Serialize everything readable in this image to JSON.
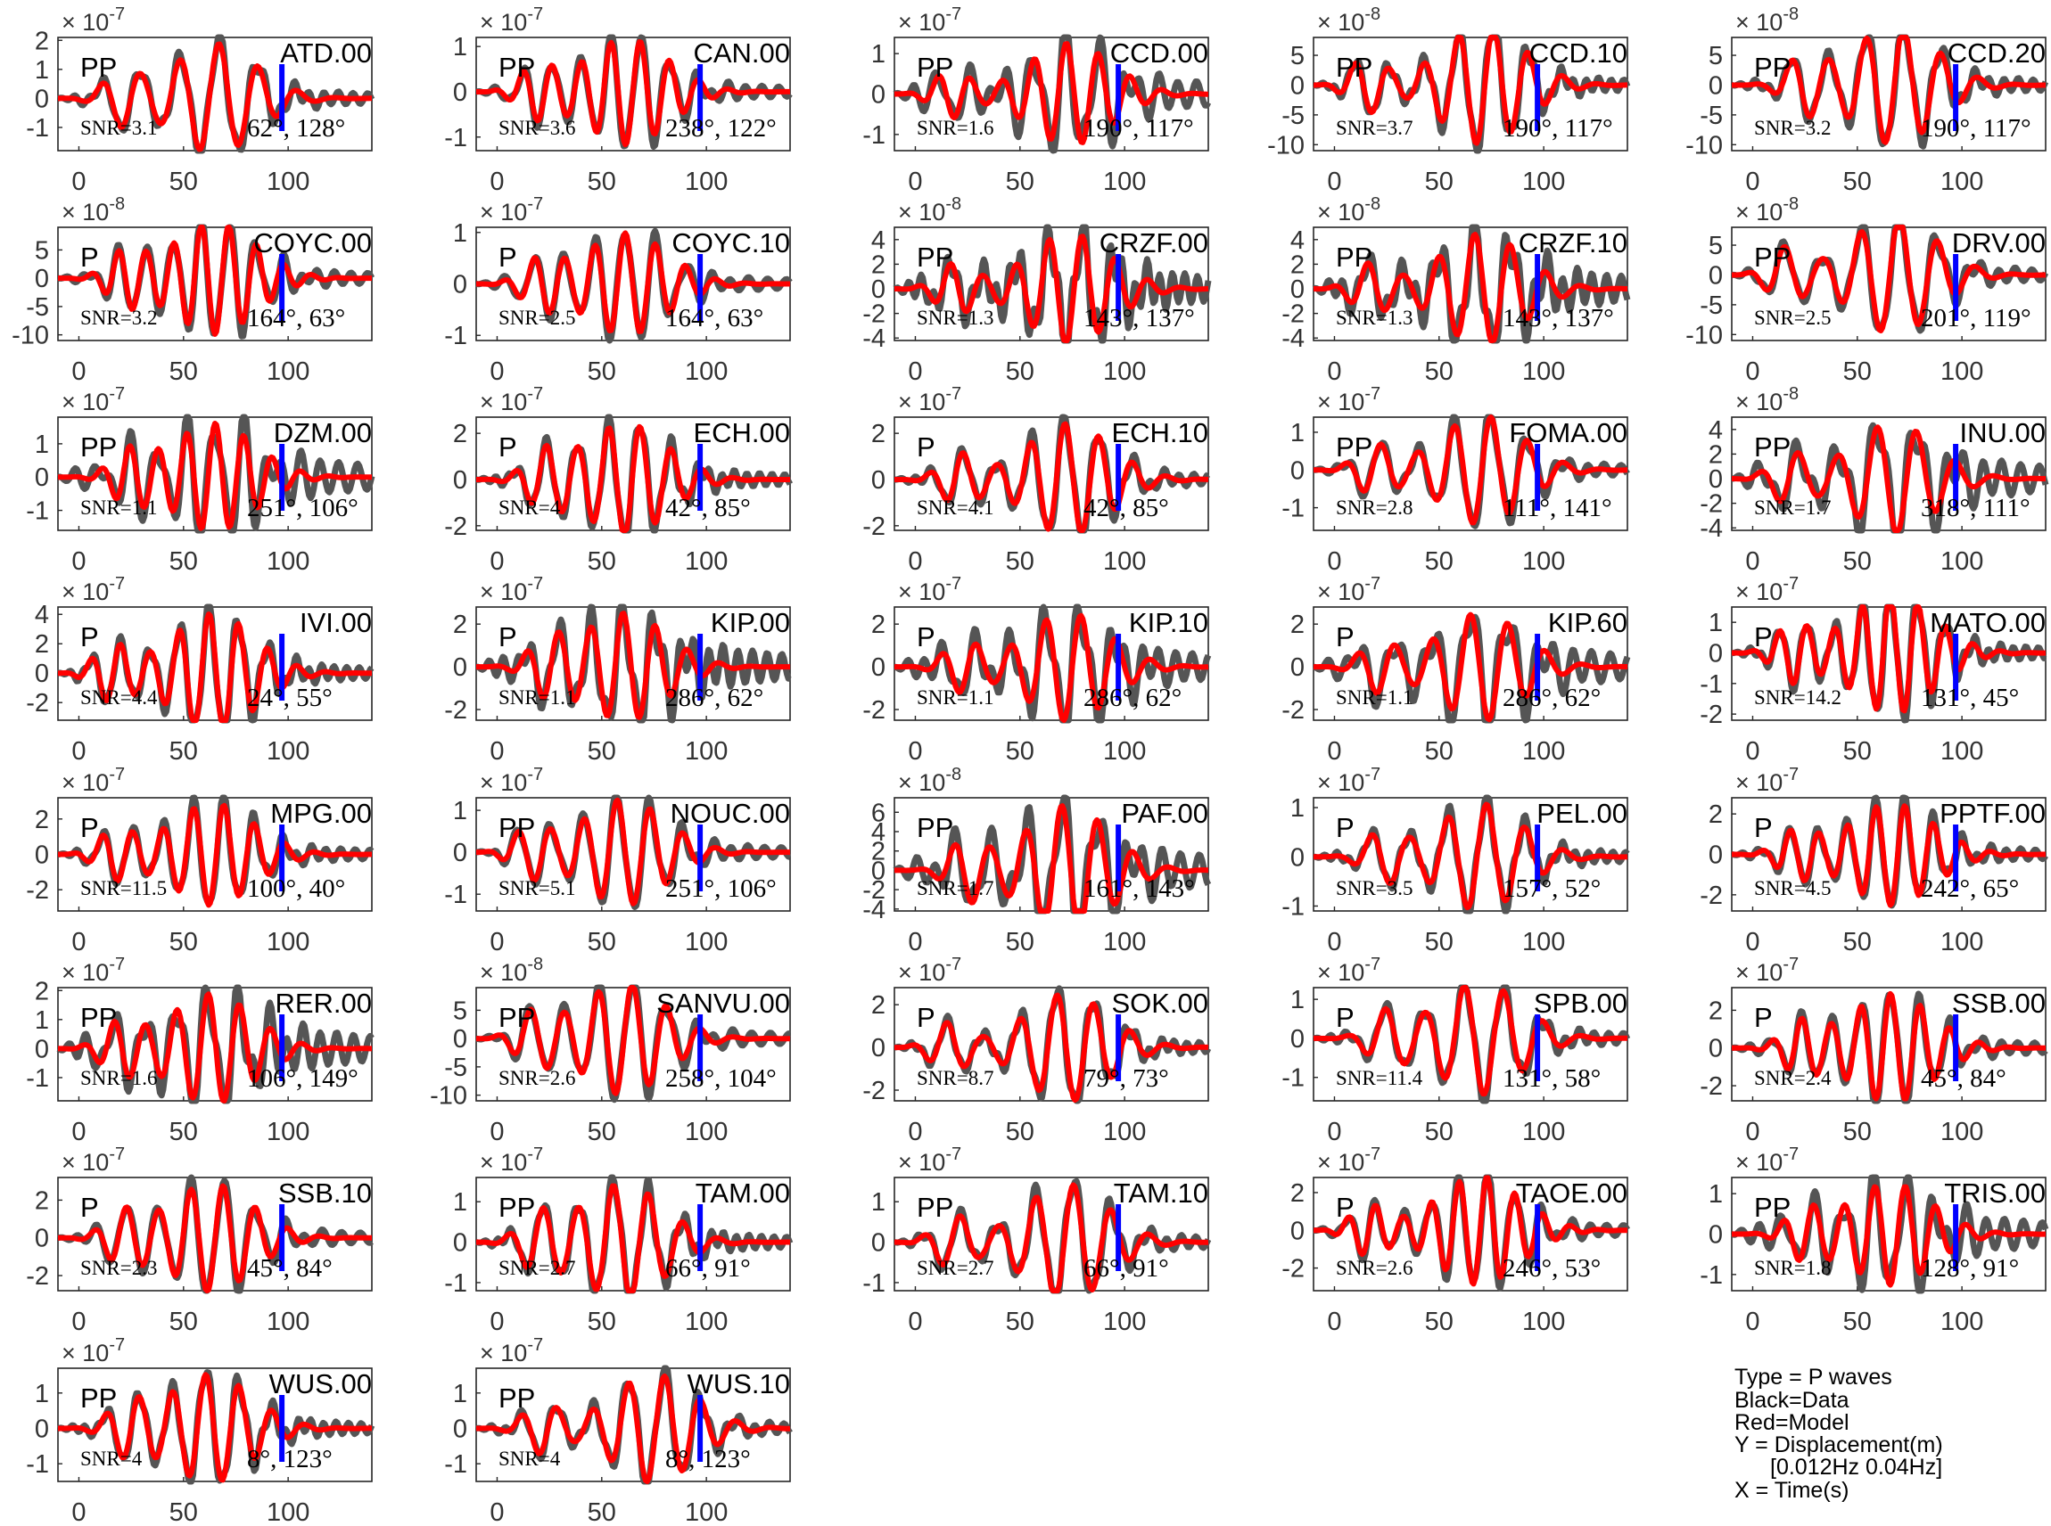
{
  "chart_data": {
    "type": "line",
    "series_styles": {
      "data": "#555555",
      "model": "#ff0000",
      "marker": "#0000ff"
    },
    "xlim": [
      -10,
      140
    ],
    "xticks": [
      0,
      50,
      100
    ],
    "marker_x": 97,
    "panels": [
      {
        "station": "ATD.00",
        "phase": "PP",
        "snr": "SNR=3.1",
        "angles": "62°, 128°",
        "exponent": "-7",
        "yticks": [
          2,
          1,
          0,
          -1
        ],
        "ylim": [
          -1.8,
          2.1
        ],
        "seed": 1
      },
      {
        "station": "CAN.00",
        "phase": "PP",
        "snr": "SNR=3.6",
        "angles": "238°, 122°",
        "exponent": "-7",
        "yticks": [
          1,
          0,
          -1
        ],
        "ylim": [
          -1.3,
          1.2
        ],
        "seed": 2
      },
      {
        "station": "CCD.00",
        "phase": "PP",
        "snr": "SNR=1.6",
        "angles": "190°, 117°",
        "exponent": "-7",
        "yticks": [
          1,
          0,
          -1
        ],
        "ylim": [
          -1.4,
          1.4
        ],
        "seed": 3
      },
      {
        "station": "CCD.10",
        "phase": "PP",
        "snr": "SNR=3.7",
        "angles": "190°, 117°",
        "exponent": "-8",
        "yticks": [
          5,
          0,
          -5,
          -10
        ],
        "ylim": [
          -11,
          8
        ],
        "seed": 4
      },
      {
        "station": "CCD.20",
        "phase": "PP",
        "snr": "SNR=3.2",
        "angles": "190°, 117°",
        "exponent": "-8",
        "yticks": [
          5,
          0,
          -5,
          -10
        ],
        "ylim": [
          -11,
          8
        ],
        "seed": 5
      },
      {
        "station": "COYC.00",
        "phase": "P",
        "snr": "SNR=3.2",
        "angles": "164°, 63°",
        "exponent": "-8",
        "yticks": [
          5,
          0,
          -5,
          -10
        ],
        "ylim": [
          -11,
          9
        ],
        "seed": 6
      },
      {
        "station": "COYC.10",
        "phase": "P",
        "snr": "SNR=2.5",
        "angles": "164°, 63°",
        "exponent": "-7",
        "yticks": [
          1,
          0,
          -1
        ],
        "ylim": [
          -1.1,
          1.1
        ],
        "seed": 7
      },
      {
        "station": "CRZF.00",
        "phase": "PP",
        "snr": "SNR=1.3",
        "angles": "143°, 137°",
        "exponent": "-8",
        "yticks": [
          4,
          2,
          0,
          -2,
          -4
        ],
        "ylim": [
          -4.2,
          5
        ],
        "seed": 8
      },
      {
        "station": "CRZF.10",
        "phase": "PP",
        "snr": "SNR=1.3",
        "angles": "143°, 137°",
        "exponent": "-8",
        "yticks": [
          4,
          2,
          0,
          -2,
          -4
        ],
        "ylim": [
          -4.2,
          5
        ],
        "seed": 9
      },
      {
        "station": "DRV.00",
        "phase": "PP",
        "snr": "SNR=2.5",
        "angles": "201°, 119°",
        "exponent": "-8",
        "yticks": [
          5,
          0,
          -5,
          -10
        ],
        "ylim": [
          -11,
          8
        ],
        "seed": 10
      },
      {
        "station": "DZM.00",
        "phase": "PP",
        "snr": "SNR=1.1",
        "angles": "251°, 106°",
        "exponent": "-7",
        "yticks": [
          1,
          0,
          -1
        ],
        "ylim": [
          -1.6,
          1.8
        ],
        "seed": 11
      },
      {
        "station": "ECH.00",
        "phase": "P",
        "snr": "SNR=4",
        "angles": "42°, 85°",
        "exponent": "-7",
        "yticks": [
          2,
          0,
          -2
        ],
        "ylim": [
          -2.2,
          2.7
        ],
        "seed": 12
      },
      {
        "station": "ECH.10",
        "phase": "P",
        "snr": "SNR=4.1",
        "angles": "42°, 85°",
        "exponent": "-7",
        "yticks": [
          2,
          0,
          -2
        ],
        "ylim": [
          -2.2,
          2.7
        ],
        "seed": 13
      },
      {
        "station": "FOMA.00",
        "phase": "PP",
        "snr": "SNR=2.8",
        "angles": "111°, 141°",
        "exponent": "-7",
        "yticks": [
          1,
          0,
          -1
        ],
        "ylim": [
          -1.6,
          1.4
        ],
        "seed": 14
      },
      {
        "station": "INU.00",
        "phase": "PP",
        "snr": "SNR=1.7",
        "angles": "318°, 111°",
        "exponent": "-8",
        "yticks": [
          4,
          2,
          0,
          -2,
          -4
        ],
        "ylim": [
          -4.2,
          5
        ],
        "seed": 15
      },
      {
        "station": "IVI.00",
        "phase": "P",
        "snr": "SNR=4.4",
        "angles": "24°, 55°",
        "exponent": "-7",
        "yticks": [
          4,
          2,
          0,
          -2
        ],
        "ylim": [
          -3.2,
          4.5
        ],
        "seed": 16
      },
      {
        "station": "KIP.00",
        "phase": "P",
        "snr": "SNR=1.1",
        "angles": "286°, 62°",
        "exponent": "-7",
        "yticks": [
          2,
          0,
          -2
        ],
        "ylim": [
          -2.5,
          2.8
        ],
        "seed": 17
      },
      {
        "station": "KIP.10",
        "phase": "P",
        "snr": "SNR=1.1",
        "angles": "286°, 62°",
        "exponent": "-7",
        "yticks": [
          2,
          0,
          -2
        ],
        "ylim": [
          -2.5,
          2.8
        ],
        "seed": 18
      },
      {
        "station": "KIP.60",
        "phase": "P",
        "snr": "SNR=1.1",
        "angles": "286°, 62°",
        "exponent": "-7",
        "yticks": [
          2,
          0,
          -2
        ],
        "ylim": [
          -2.5,
          2.8
        ],
        "seed": 19
      },
      {
        "station": "MATO.00",
        "phase": "P",
        "snr": "SNR=14.2",
        "angles": "131°, 45°",
        "exponent": "-7",
        "yticks": [
          1,
          0,
          -1,
          -2
        ],
        "ylim": [
          -2.2,
          1.5
        ],
        "seed": 20
      },
      {
        "station": "MPG.00",
        "phase": "P",
        "snr": "SNR=11.5",
        "angles": "100°, 40°",
        "exponent": "-7",
        "yticks": [
          2,
          0,
          -2
        ],
        "ylim": [
          -3.2,
          3.2
        ],
        "seed": 21
      },
      {
        "station": "NOUC.00",
        "phase": "PP",
        "snr": "SNR=5.1",
        "angles": "251°, 106°",
        "exponent": "-7",
        "yticks": [
          1,
          0,
          -1
        ],
        "ylim": [
          -1.4,
          1.3
        ],
        "seed": 22
      },
      {
        "station": "PAF.00",
        "phase": "PP",
        "snr": "SNR=1.7",
        "angles": "161°, 143°",
        "exponent": "-8",
        "yticks": [
          6,
          4,
          2,
          0,
          -2,
          -4
        ],
        "ylim": [
          -4.2,
          7.5
        ],
        "seed": 23
      },
      {
        "station": "PEL.00",
        "phase": "P",
        "snr": "SNR=3.5",
        "angles": "157°, 52°",
        "exponent": "-7",
        "yticks": [
          1,
          0,
          -1
        ],
        "ylim": [
          -1.1,
          1.2
        ],
        "seed": 24
      },
      {
        "station": "PPTF.00",
        "phase": "P",
        "snr": "SNR=4.5",
        "angles": "242°, 65°",
        "exponent": "-7",
        "yticks": [
          2,
          0,
          -2
        ],
        "ylim": [
          -2.8,
          2.8
        ],
        "seed": 25
      },
      {
        "station": "RER.00",
        "phase": "PP",
        "snr": "SNR=1.6",
        "angles": "106°, 149°",
        "exponent": "-7",
        "yticks": [
          2,
          1,
          0,
          -1
        ],
        "ylim": [
          -1.8,
          2.1
        ],
        "seed": 26
      },
      {
        "station": "SANVU.00",
        "phase": "PP",
        "snr": "SNR=2.6",
        "angles": "258°, 104°",
        "exponent": "-8",
        "yticks": [
          5,
          0,
          -5,
          -10
        ],
        "ylim": [
          -11,
          9
        ],
        "seed": 27
      },
      {
        "station": "SOK.00",
        "phase": "P",
        "snr": "SNR=8.7",
        "angles": "79°, 73°",
        "exponent": "-7",
        "yticks": [
          2,
          0,
          -2
        ],
        "ylim": [
          -2.5,
          2.8
        ],
        "seed": 28
      },
      {
        "station": "SPB.00",
        "phase": "P",
        "snr": "SNR=11.4",
        "angles": "131°, 58°",
        "exponent": "-7",
        "yticks": [
          1,
          0,
          -1
        ],
        "ylim": [
          -1.6,
          1.3
        ],
        "seed": 29
      },
      {
        "station": "SSB.00",
        "phase": "P",
        "snr": "SNR=2.4",
        "angles": "45°, 84°",
        "exponent": "-7",
        "yticks": [
          2,
          0,
          -2
        ],
        "ylim": [
          -2.8,
          3.2
        ],
        "seed": 30
      },
      {
        "station": "SSB.10",
        "phase": "P",
        "snr": "SNR=2.3",
        "angles": "45°, 84°",
        "exponent": "-7",
        "yticks": [
          2,
          0,
          -2
        ],
        "ylim": [
          -2.8,
          3.2
        ],
        "seed": 31
      },
      {
        "station": "TAM.00",
        "phase": "PP",
        "snr": "SNR=2.7",
        "angles": "66°, 91°",
        "exponent": "-7",
        "yticks": [
          1,
          0,
          -1
        ],
        "ylim": [
          -1.2,
          1.6
        ],
        "seed": 32
      },
      {
        "station": "TAM.10",
        "phase": "PP",
        "snr": "SNR=2.7",
        "angles": "66°, 91°",
        "exponent": "-7",
        "yticks": [
          1,
          0,
          -1
        ],
        "ylim": [
          -1.2,
          1.6
        ],
        "seed": 33
      },
      {
        "station": "TAOE.00",
        "phase": "P",
        "snr": "SNR=2.6",
        "angles": "246°, 53°",
        "exponent": "-7",
        "yticks": [
          2,
          0,
          -2
        ],
        "ylim": [
          -3.2,
          2.8
        ],
        "seed": 34
      },
      {
        "station": "TRIS.00",
        "phase": "PP",
        "snr": "SNR=1.8",
        "angles": "128°, 91°",
        "exponent": "-7",
        "yticks": [
          1,
          0,
          -1
        ],
        "ylim": [
          -1.4,
          1.4
        ],
        "seed": 35
      },
      {
        "station": "WUS.00",
        "phase": "PP",
        "snr": "SNR=4",
        "angles": "8°, 123°",
        "exponent": "-7",
        "yticks": [
          1,
          0,
          -1
        ],
        "ylim": [
          -1.5,
          1.7
        ],
        "seed": 36
      },
      {
        "station": "WUS.10",
        "phase": "PP",
        "snr": "SNR=4",
        "angles": "8°, 123°",
        "exponent": "-7",
        "yticks": [
          1,
          0,
          -1
        ],
        "ylim": [
          -1.5,
          1.7
        ],
        "seed": 37
      }
    ]
  },
  "legend": {
    "lines": [
      "Type = P waves",
      "Black=Data",
      "Red=Model",
      "Y = Displacement(m)",
      "[0.012Hz 0.04Hz]",
      "X = Time(s)"
    ]
  }
}
